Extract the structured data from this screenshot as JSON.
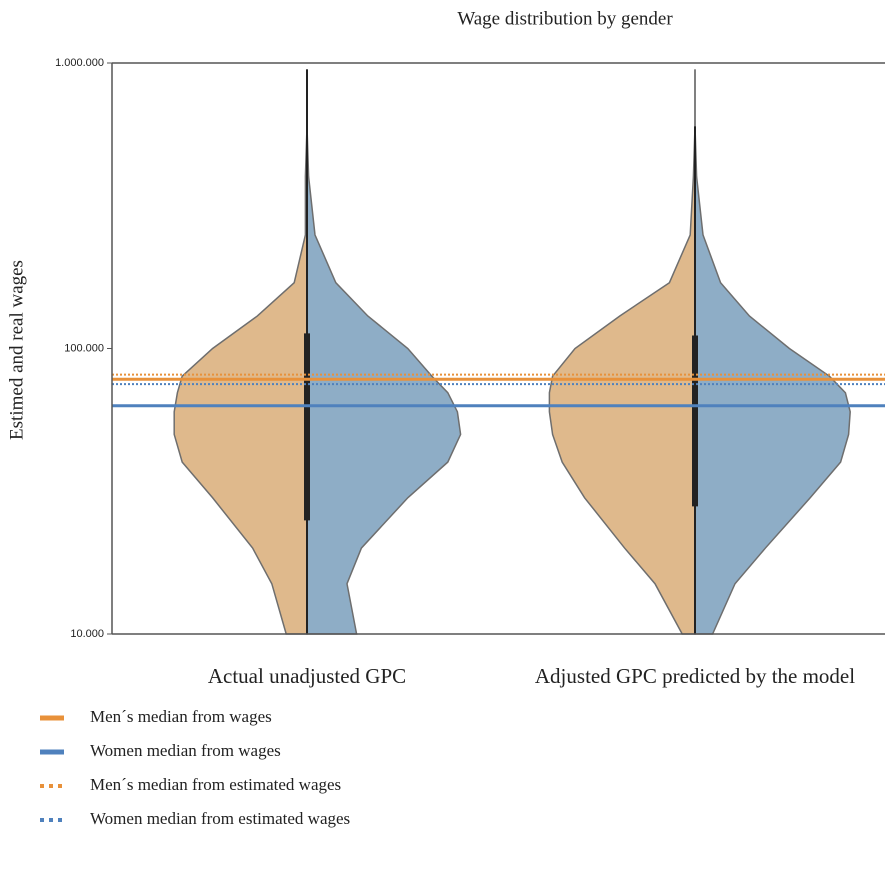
{
  "chart_data": {
    "type": "violin",
    "title": "Wage distribution by gender",
    "y_label": "Estimed and real wages",
    "categories": [
      "Actual unadjusted GPC",
      "Adjusted GPC predicted by the model"
    ],
    "log_scale": true,
    "ylim": [
      10000,
      1000000
    ],
    "yticks": [
      {
        "value": 10000,
        "label": "10.000"
      },
      {
        "value": 100000,
        "label": "100.000"
      },
      {
        "value": 1000000,
        "label": "1.000.000"
      }
    ],
    "density_y": [
      10000,
      15000,
      20000,
      30000,
      40000,
      50000,
      60000,
      70000,
      80000,
      100000,
      130000,
      170000,
      250000,
      400000,
      600000,
      950000
    ],
    "series": [
      {
        "color": "#dfb98c",
        "side": "left",
        "densities": [
          [
            0.13,
            0.22,
            0.34,
            0.59,
            0.78,
            0.83,
            0.83,
            0.81,
            0.78,
            0.59,
            0.31,
            0.08,
            0.01,
            0.01,
            0,
            0
          ],
          [
            0.08,
            0.25,
            0.44,
            0.69,
            0.83,
            0.89,
            0.91,
            0.91,
            0.89,
            0.75,
            0.47,
            0.16,
            0.03,
            0.01,
            0,
            0
          ]
        ]
      },
      {
        "color": "#8eadc6",
        "side": "right",
        "densities": [
          [
            0.31,
            0.25,
            0.34,
            0.63,
            0.88,
            0.96,
            0.94,
            0.88,
            0.78,
            0.63,
            0.38,
            0.18,
            0.05,
            0.01,
            0,
            0
          ],
          [
            0.11,
            0.25,
            0.44,
            0.72,
            0.91,
            0.96,
            0.97,
            0.94,
            0.84,
            0.59,
            0.34,
            0.16,
            0.05,
            0.01,
            0,
            0
          ]
        ]
      }
    ],
    "boxes": [
      {
        "low": 10000,
        "q1": 25000,
        "q3": 113000,
        "high": 950000
      },
      {
        "low": 10000,
        "q1": 28000,
        "q3": 111000,
        "high": 600000
      }
    ],
    "reference_lines": [
      {
        "name": "Men´s median from wages",
        "value": 78000,
        "color": "#e8913a",
        "style": "solid"
      },
      {
        "name": "Women median from wages",
        "value": 63000,
        "color": "#4f81bd",
        "style": "solid"
      },
      {
        "name": "Men´s median from estimated wages",
        "value": 81000,
        "color": "#e8913a",
        "style": "dotted"
      },
      {
        "name": "Women median from estimated wages",
        "value": 75000,
        "color": "#4f81bd",
        "style": "dotted"
      }
    ]
  }
}
